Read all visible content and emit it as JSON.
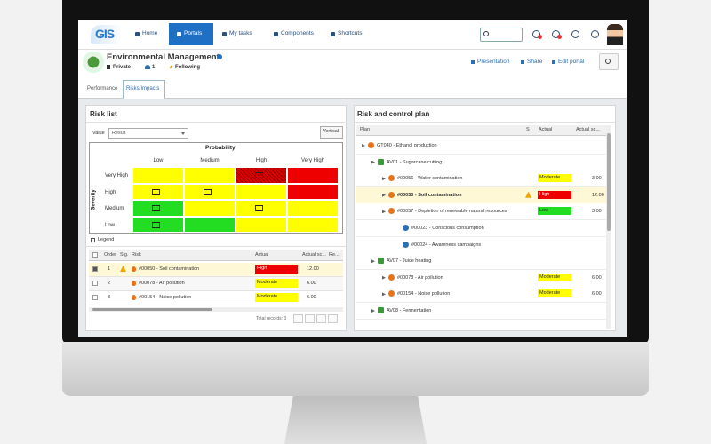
{
  "nav": {
    "logo": "GIS",
    "items": [
      "Home",
      "Portals",
      "My tasks",
      "Components",
      "Shortcuts"
    ]
  },
  "header": {
    "title": "Environmental Management",
    "privacy": "Private",
    "members": "1",
    "follow": "Following",
    "actions": [
      "Presentation",
      "Share",
      "Edit portal"
    ]
  },
  "tabs": [
    "Performance",
    "Risks/Impacts"
  ],
  "risk_list": {
    "title": "Risk list",
    "value_label": "Value",
    "value_select": "Result",
    "button": "Vertical",
    "matrix": {
      "x_title": "Probability",
      "y_title": "Severity",
      "columns": [
        "Low",
        "Medium",
        "High",
        "Very High"
      ],
      "rows": [
        "Very High",
        "High",
        "Medium",
        "Low"
      ],
      "colors": [
        [
          "#ffff00",
          "#ffff00",
          "#e00000",
          "#ee0000"
        ],
        [
          "#ffff00",
          "#ffff00",
          "#ffff00",
          "#ee0000"
        ],
        [
          "#22dd22",
          "#ffff00",
          "#ffff00",
          "#ffff00"
        ],
        [
          "#22dd22",
          "#22dd22",
          "#ffff00",
          "#ffff00"
        ]
      ],
      "hatched_cells": [
        [
          0,
          2
        ]
      ],
      "marked_cells": [
        [
          0,
          2
        ],
        [
          1,
          0
        ],
        [
          1,
          1
        ],
        [
          2,
          0
        ],
        [
          2,
          2
        ],
        [
          3,
          0
        ]
      ]
    },
    "legend": "Legend",
    "table": {
      "columns": [
        "Order",
        "Sig.",
        "Risk",
        "Actual",
        "Actual sc...",
        "Re..."
      ],
      "rows": [
        {
          "order": "1",
          "warning": true,
          "risk": "#00050 - Soil contamination",
          "actual": "High",
          "actual_color": "#ee0000",
          "score": "12.00",
          "selected": true
        },
        {
          "order": "2",
          "warning": false,
          "risk": "#00078 - Air pollution",
          "actual": "Moderate",
          "actual_color": "#ffff00",
          "score": "6.00",
          "selected": false
        },
        {
          "order": "3",
          "warning": false,
          "risk": "#00154 - Noise pollution",
          "actual": "Moderate",
          "actual_color": "#ffff00",
          "score": "6.00",
          "selected": false
        }
      ],
      "footer": "Total records: 3"
    }
  },
  "plan": {
    "title": "Risk and control plan",
    "columns": [
      "Plan",
      "S",
      "Actual",
      "Actual sc..."
    ],
    "rows": [
      {
        "level": 0,
        "label": "GT040 - Ethanol production"
      },
      {
        "level": 1,
        "label": "AV01 - Sugarcane cutting"
      },
      {
        "level": 2,
        "label": "#00056 - Water contamination",
        "actual": "Moderate",
        "actual_color": "#ffff00",
        "score": "3.00"
      },
      {
        "level": 2,
        "label": "#00050 - Soil contamination",
        "warning": true,
        "actual": "High",
        "actual_color": "#ee0000",
        "score": "12.00",
        "highlight": true
      },
      {
        "level": 2,
        "label": "#00057 - Depletion of renewable natural resources",
        "actual": "Low",
        "actual_color": "#22dd22",
        "score": "3.00"
      },
      {
        "level": 3,
        "label": "#00023 - Conscious consumption"
      },
      {
        "level": 3,
        "label": "#00024 - Awareness campaigns"
      },
      {
        "level": 1,
        "label": "AV07 - Juice heating"
      },
      {
        "level": 2,
        "label": "#00078 - Air pollution",
        "actual": "Moderate",
        "actual_color": "#ffff00",
        "score": "6.00"
      },
      {
        "level": 2,
        "label": "#00154 - Noise pollution",
        "actual": "Moderate",
        "actual_color": "#ffff00",
        "score": "6.00"
      },
      {
        "level": 1,
        "label": "AV08 - Fermentation"
      }
    ]
  }
}
